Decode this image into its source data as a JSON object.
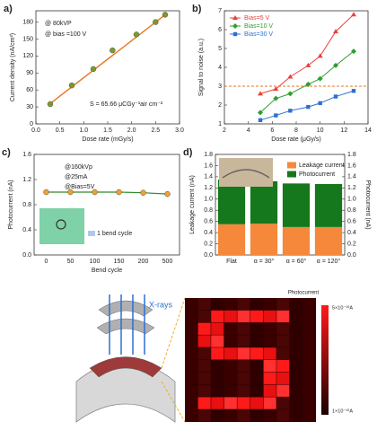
{
  "chart_data": [
    {
      "type": "scatter",
      "panel": "a)",
      "xlabel": "Dose rate (mGy/s)",
      "ylabel": "Current density (nA/cm²)",
      "annotations": [
        "@ 80kVP",
        "@ bias =100 V",
        "S = 65.66 μCGy⁻¹air cm⁻²"
      ],
      "x": [
        0.3,
        0.75,
        1.2,
        1.6,
        2.1,
        2.5,
        2.7
      ],
      "values": [
        35,
        68,
        97,
        130,
        158,
        180,
        193
      ],
      "color": "#7a9a2a",
      "trend_x": [
        0.3,
        2.7
      ],
      "trend_y": [
        36,
        193
      ],
      "trend_color": "#e87722",
      "xlim": [
        0,
        3
      ],
      "xticks": [
        {
          "value": 0,
          "label": "0.0"
        },
        {
          "value": 0.5,
          "label": "0.5"
        },
        {
          "value": 1,
          "label": "1.0"
        },
        {
          "value": 1.5,
          "label": "1.5"
        },
        {
          "value": 2,
          "label": "2.0"
        },
        {
          "value": 2.5,
          "label": "2.5"
        },
        {
          "value": 3,
          "label": "3.0"
        }
      ],
      "ylim": [
        0,
        200
      ],
      "yticks": [
        0,
        30,
        60,
        90,
        120,
        150,
        180
      ]
    },
    {
      "type": "line",
      "panel": "b)",
      "xlabel": "Dose rate (μGy/s)",
      "ylabel": "Signal to noise (a.u.)",
      "x": [
        5,
        6.3,
        7.5,
        9,
        10,
        11.3,
        12.8
      ],
      "series": [
        {
          "name": "Bias=5 V",
          "color": "#e8413c",
          "marker": "triangle",
          "values": [
            2.6,
            2.85,
            3.5,
            4.1,
            4.6,
            5.9,
            6.8
          ]
        },
        {
          "name": "Bias=10 V",
          "color": "#2e9e2e",
          "marker": "diamond",
          "values": [
            1.6,
            2.35,
            2.6,
            3.1,
            3.4,
            4.1,
            4.85
          ]
        },
        {
          "name": "Bias=30 V",
          "color": "#2f6fd0",
          "marker": "square",
          "values": [
            1.2,
            1.45,
            1.7,
            1.9,
            2.1,
            2.45,
            2.75
          ]
        }
      ],
      "threshold": 3,
      "threshold_color": "#e87722",
      "legend": "upper-left",
      "xlim": [
        2,
        14
      ],
      "xticks": [
        2,
        4,
        6,
        8,
        10,
        12,
        14
      ],
      "ylim": [
        1,
        7
      ],
      "yticks": [
        1,
        2,
        3,
        4,
        5,
        6,
        7
      ]
    },
    {
      "type": "line",
      "panel": "c)",
      "xlabel": "Bend cycle",
      "ylabel": "Photocurrent (nA)",
      "annotations": [
        "@160kVp",
        "@25mA",
        "@Bias=5V",
        "1 bend cycle"
      ],
      "categories": [
        "0",
        "50",
        "100",
        "150",
        "200",
        "500"
      ],
      "values": [
        1.0,
        1.0,
        1.0,
        1.0,
        0.99,
        0.97
      ],
      "color": "#f0a030",
      "line_color": "#2e8b2e",
      "ylim": [
        0,
        1.6
      ],
      "yticks": [
        {
          "value": 0,
          "label": "0.0"
        },
        {
          "value": 0.4,
          "label": "0.4"
        },
        {
          "value": 0.8,
          "label": "0.8"
        },
        {
          "value": 1.2,
          "label": "1.2"
        },
        {
          "value": 1.6,
          "label": "1.6"
        }
      ]
    },
    {
      "type": "bar",
      "stacked": true,
      "panel": "d)",
      "ylabel": "Leakage current (nA)",
      "y2label": "Photocurrent (nA)",
      "categories": [
        "Flat",
        "α = 30°",
        "α = 60°",
        "α = 120°"
      ],
      "series": [
        {
          "name": "Leakage current",
          "color": "#f5883a",
          "values": [
            0.55,
            0.56,
            0.5,
            0.5
          ]
        },
        {
          "name": "Photocurrent",
          "color": "#16781c",
          "values": [
            0.8,
            0.76,
            0.78,
            0.77
          ]
        }
      ],
      "legend": "upper-right",
      "ylim": [
        0,
        1.8
      ],
      "yticks": [
        {
          "value": 0,
          "label": "0.0"
        },
        {
          "value": 0.2,
          "label": "0.2"
        },
        {
          "value": 0.4,
          "label": "0.4"
        },
        {
          "value": 0.6,
          "label": "0.6"
        },
        {
          "value": 0.8,
          "label": "0.8"
        },
        {
          "value": 1,
          "label": "1.0"
        },
        {
          "value": 1.2,
          "label": "1.2"
        },
        {
          "value": 1.4,
          "label": "1.4"
        },
        {
          "value": 1.6,
          "label": "1.6"
        },
        {
          "value": 1.8,
          "label": "1.8"
        }
      ],
      "y2lim": [
        0,
        1.8
      ],
      "y2ticks": [
        {
          "value": 0,
          "label": "0.0"
        },
        {
          "value": 0.2,
          "label": "0.2"
        },
        {
          "value": 0.4,
          "label": "0.4"
        },
        {
          "value": 0.6,
          "label": "0.6"
        },
        {
          "value": 0.8,
          "label": "0.8"
        },
        {
          "value": 1,
          "label": "1.0"
        },
        {
          "value": 1.2,
          "label": "1.2"
        },
        {
          "value": 1.4,
          "label": "1.4"
        },
        {
          "value": 1.6,
          "label": "1.6"
        },
        {
          "value": 1.8,
          "label": "1.8"
        }
      ]
    }
  ],
  "figure_e": {
    "xray_label": "X-rays",
    "heatmap_title": "Photocurrent",
    "colorbar_max": "5×10⁻¹⁰A",
    "colorbar_min": "1×10⁻¹⁰A"
  }
}
